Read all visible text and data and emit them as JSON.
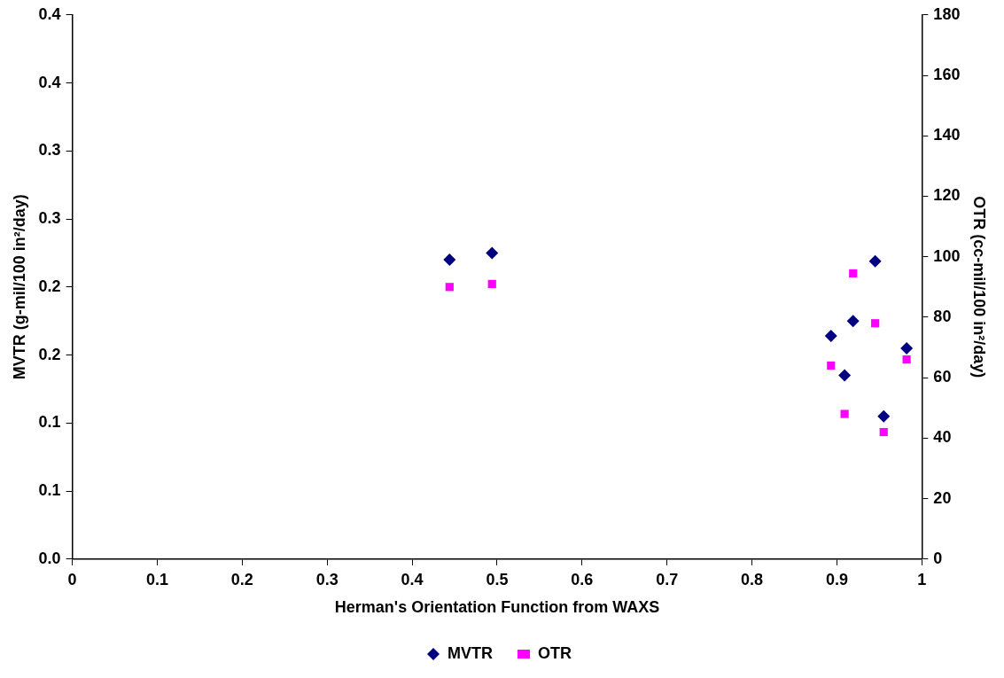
{
  "chart_data": {
    "type": "scatter",
    "xlabel": "Herman's Orientation Function from WAXS",
    "ylabel": "MVTR (g-mil/100 in²/day)",
    "y2label": "OTR (cc-mil/100 in²/day)",
    "xlim": [
      0,
      1
    ],
    "xticks": [
      0,
      0.1,
      0.2,
      0.3,
      0.4,
      0.5,
      0.6,
      0.7,
      0.8,
      0.9,
      1
    ],
    "ylim": [
      0,
      0.4
    ],
    "yticks": [
      {
        "value": 0,
        "label": "0.0"
      },
      {
        "value": 0.05,
        "label": "0.1"
      },
      {
        "value": 0.1,
        "label": "0.1"
      },
      {
        "value": 0.15,
        "label": "0.2"
      },
      {
        "value": 0.2,
        "label": "0.2"
      },
      {
        "value": 0.25,
        "label": "0.3"
      },
      {
        "value": 0.3,
        "label": "0.3"
      },
      {
        "value": 0.35,
        "label": "0.4"
      },
      {
        "value": 0.4,
        "label": "0.4"
      }
    ],
    "y2lim": [
      0,
      180
    ],
    "y2ticks": [
      0,
      20,
      40,
      60,
      80,
      100,
      120,
      140,
      160,
      180
    ],
    "grid": false,
    "legend": "bottom",
    "series": [
      {
        "name": "MVTR",
        "color": "#000080",
        "marker": "diamond",
        "x": [
          0.444,
          0.494,
          0.893,
          0.909,
          0.919,
          0.945,
          0.955,
          0.982
        ],
        "values": [
          0.22,
          0.225,
          0.164,
          0.135,
          0.175,
          0.219,
          0.105,
          0.155
        ]
      },
      {
        "name": "OTR",
        "color": "#ff00ff",
        "marker": "square",
        "axis": "y2",
        "x": [
          0.444,
          0.494,
          0.893,
          0.909,
          0.919,
          0.945,
          0.955,
          0.982
        ],
        "values": [
          90,
          91,
          64,
          48,
          94.5,
          78,
          42,
          66
        ]
      }
    ]
  }
}
